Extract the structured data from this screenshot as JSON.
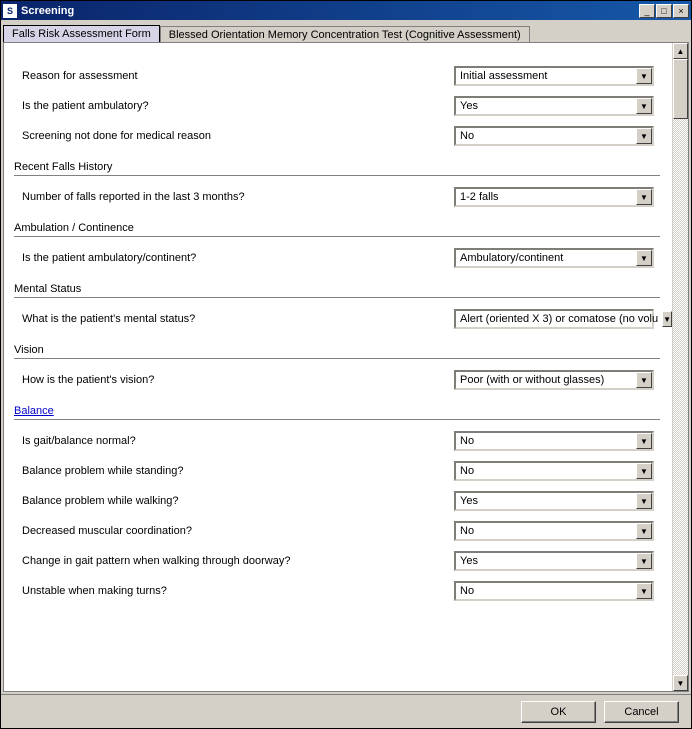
{
  "window": {
    "title": "Screening",
    "icon_label": "S",
    "colors": {
      "titlebar_gradient_start": "#0a246a",
      "titlebar_gradient_end": "#1658a8",
      "chrome_bg": "#d4d0c8",
      "content_bg": "#ffffff",
      "border_dark": "#808080",
      "link_color": "#0000cc"
    }
  },
  "tabs": [
    {
      "label": "Falls Risk Assessment Form",
      "active": true
    },
    {
      "label": "Blessed Orientation Memory Concentration Test (Cognitive Assessment)",
      "active": false
    }
  ],
  "form": {
    "top_rows": [
      {
        "label": "Reason for assessment",
        "value": "Initial assessment"
      },
      {
        "label": "Is the patient ambulatory?",
        "value": "Yes"
      },
      {
        "label": "Screening not done for medical reason",
        "value": "No"
      }
    ],
    "sections": [
      {
        "heading": "Recent Falls History",
        "link": false,
        "rows": [
          {
            "label": "Number of falls reported in the last 3 months?",
            "value": "1-2 falls"
          }
        ]
      },
      {
        "heading": "Ambulation / Continence",
        "link": false,
        "rows": [
          {
            "label": "Is the patient ambulatory/continent?",
            "value": "Ambulatory/continent"
          }
        ]
      },
      {
        "heading": "Mental Status",
        "link": false,
        "rows": [
          {
            "label": "What is the patient's mental status?",
            "value": "Alert (oriented X 3) or comatose (no volu"
          }
        ]
      },
      {
        "heading": "Vision",
        "link": false,
        "rows": [
          {
            "label": "How is the patient's vision?",
            "value": "Poor (with or without glasses)"
          }
        ]
      },
      {
        "heading": "Balance",
        "link": true,
        "rows": [
          {
            "label": "Is gait/balance normal?",
            "value": "No"
          },
          {
            "label": "Balance problem while standing?",
            "value": "No"
          },
          {
            "label": "Balance problem while walking?",
            "value": "Yes"
          },
          {
            "label": "Decreased muscular coordination?",
            "value": "No"
          },
          {
            "label": "Change in gait pattern when walking through doorway?",
            "value": "Yes"
          },
          {
            "label": "Unstable when making turns?",
            "value": "No"
          }
        ]
      }
    ]
  },
  "footer": {
    "ok_label": "OK",
    "cancel_label": "Cancel"
  },
  "window_buttons": {
    "minimize": "_",
    "maximize": "□",
    "close": "×"
  },
  "scrollbar": {
    "up_glyph": "▲",
    "down_glyph": "▼"
  },
  "dropdown_glyph": "▼"
}
